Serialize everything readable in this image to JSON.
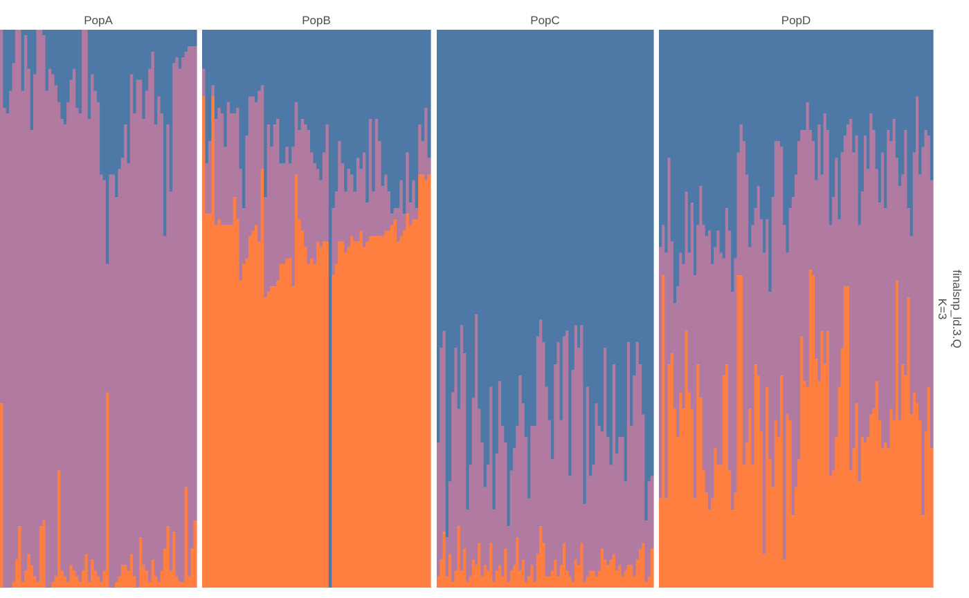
{
  "chart_data": {
    "type": "bar",
    "subtype": "stacked-proportion-admixture",
    "facet_labels": [
      "PopA",
      "PopB",
      "PopC",
      "PopD"
    ],
    "side_label_lines": [
      "finalsnp_ld.3.Q",
      "K=3"
    ],
    "ylim": [
      0,
      1
    ],
    "stack_order_bottom_to_top": [
      "cluster3",
      "cluster2",
      "cluster1"
    ],
    "colors": {
      "cluster1": "#4e79a7",
      "cluster2": "#b07aa1",
      "cluster3": "#ff7f41"
    },
    "grid": false,
    "legend": "none",
    "panels": [
      {
        "name": "PopA",
        "cluster3": [
          0.33,
          0,
          0,
          0,
          0.01,
          0.05,
          0.11,
          0.01,
          0.03,
          0.06,
          0.04,
          0.02,
          0.01,
          0.11,
          0.12,
          0,
          0,
          0.01,
          0.02,
          0.21,
          0.03,
          0.02,
          0.01,
          0.04,
          0.03,
          0.02,
          0.01,
          0.03,
          0.06,
          0.01,
          0.05,
          0.03,
          0.02,
          0.01,
          0.03,
          0.35,
          0,
          0,
          0.01,
          0.02,
          0.04,
          0.04,
          0.03,
          0.06,
          0.02,
          0,
          0.09,
          0.04,
          0.03,
          0.01,
          0.05,
          0.02,
          0.01,
          0.03,
          0.07,
          0.11,
          0.03,
          0.1,
          0.02,
          0.01,
          0.01,
          0.18,
          0.02,
          0.07,
          0.12
        ],
        "cluster2": [
          0.67,
          0.86,
          0.85,
          0.89,
          0.93,
          0.95,
          0.89,
          0.88,
          0.96,
          0.87,
          0.78,
          0.9,
          0.99,
          0.89,
          0.87,
          0.89,
          0.93,
          0.91,
          0.88,
          0.66,
          0.81,
          0.81,
          0.86,
          0.87,
          0.9,
          0.84,
          0.84,
          0.97,
          0.94,
          0.83,
          0.87,
          0.86,
          0.85,
          0.73,
          0.7,
          0.23,
          0.74,
          0.74,
          0.69,
          0.73,
          0.73,
          0.79,
          0.73,
          0.86,
          0.83,
          0.91,
          0.82,
          0.8,
          0.86,
          0.92,
          0.91,
          0.81,
          0.87,
          0.82,
          0.56,
          0.72,
          0.68,
          0.84,
          0.93,
          0.92,
          0.94,
          0.78,
          0.95,
          0.9,
          0.85
        ],
        "cluster1": [
          0,
          0.14,
          0.15,
          0.11,
          0.06,
          0,
          0,
          0.11,
          0.01,
          0.07,
          0.18,
          0.08,
          0,
          0,
          0.01,
          0.11,
          0.07,
          0.08,
          0.1,
          0.13,
          0.16,
          0.17,
          0.13,
          0.09,
          0.07,
          0.14,
          0.15,
          0,
          0,
          0.16,
          0.08,
          0.11,
          0.13,
          0.26,
          0.27,
          0.42,
          0.26,
          0.26,
          0.3,
          0.25,
          0.23,
          0.17,
          0.24,
          0.08,
          0.15,
          0.09,
          0.09,
          0.16,
          0.11,
          0.07,
          0.04,
          0.17,
          0.12,
          0.15,
          0.37,
          0.17,
          0.29,
          0.06,
          0.05,
          0.07,
          0.05,
          0.04,
          0.03,
          0.03,
          0.03
        ]
      },
      {
        "name": "PopB",
        "cluster3": [
          0.88,
          0.67,
          0.67,
          0.88,
          0.65,
          0.66,
          0.65,
          0.65,
          0.65,
          0.65,
          0.7,
          0.66,
          0.55,
          0.58,
          0.59,
          0.63,
          0.64,
          0.65,
          0.62,
          0.75,
          0.52,
          0.53,
          0.54,
          0.54,
          0.55,
          0.58,
          0.58,
          0.59,
          0.59,
          0.54,
          0.74,
          0.66,
          0.64,
          0.61,
          0.58,
          0.59,
          0.58,
          0.62,
          0.61,
          0.62,
          0.62,
          0,
          0.56,
          0.58,
          0.62,
          0.62,
          0.6,
          0.61,
          0.63,
          0.62,
          0.62,
          0.64,
          0.61,
          0.62,
          0.63,
          0.63,
          0.63,
          0.63,
          0.63,
          0.64,
          0.64,
          0.65,
          0.66,
          0.62,
          0.63,
          0.64,
          0.67,
          0.65,
          0.66,
          0.66,
          0.74,
          0.74,
          0.73,
          0.74
        ],
        "cluster2": [
          0.05,
          0.09,
          0.13,
          0.02,
          0.19,
          0.2,
          0.2,
          0.14,
          0.22,
          0.2,
          0.15,
          0.2,
          0.2,
          0.1,
          0.22,
          0.25,
          0.24,
          0.22,
          0.27,
          0.15,
          0.18,
          0.3,
          0.25,
          0.29,
          0.29,
          0.18,
          0.18,
          0.2,
          0.17,
          0.25,
          0.13,
          0.16,
          0.2,
          0.22,
          0.24,
          0.19,
          0.18,
          0.13,
          0.12,
          0.16,
          0.21,
          0,
          0.12,
          0.13,
          0.18,
          0.14,
          0.11,
          0.14,
          0.11,
          0.09,
          0.15,
          0.11,
          0.17,
          0.07,
          0.21,
          0.08,
          0.21,
          0.17,
          0.09,
          0.1,
          0.07,
          0.02,
          0.02,
          0.06,
          0.1,
          0.03,
          0.11,
          0.04,
          0.07,
          0.02,
          0.09,
          0.06,
          0.13,
          0.03
        ],
        "cluster1": [
          0.07,
          0.24,
          0.2,
          0.1,
          0.16,
          0.14,
          0.15,
          0.21,
          0.13,
          0.15,
          0.15,
          0.14,
          0.25,
          0.32,
          0.19,
          0.12,
          0.12,
          0.13,
          0.11,
          0.1,
          0.3,
          0.17,
          0.21,
          0.17,
          0.16,
          0.24,
          0.24,
          0.21,
          0.24,
          0.21,
          0.13,
          0.18,
          0.16,
          0.17,
          0.18,
          0.22,
          0.24,
          0.25,
          0.27,
          0.22,
          0.17,
          1.0,
          0.32,
          0.29,
          0.2,
          0.24,
          0.29,
          0.25,
          0.26,
          0.29,
          0.23,
          0.25,
          0.22,
          0.31,
          0.16,
          0.29,
          0.16,
          0.2,
          0.28,
          0.26,
          0.29,
          0.33,
          0.32,
          0.32,
          0.27,
          0.33,
          0.22,
          0.31,
          0.27,
          0.32,
          0.17,
          0.2,
          0.14,
          0.23
        ]
      },
      {
        "name": "PopC",
        "cluster3": [
          0.02,
          0.05,
          0.1,
          0.02,
          0.06,
          0.01,
          0.03,
          0.11,
          0.03,
          0.07,
          0.01,
          0.02,
          0.05,
          0.04,
          0.08,
          0.02,
          0.04,
          0.03,
          0.08,
          0.01,
          0.03,
          0.04,
          0.02,
          0.07,
          0.01,
          0.03,
          0.04,
          0.09,
          0.03,
          0.05,
          0.01,
          0.02,
          0.04,
          0.01,
          0.06,
          0.11,
          0.08,
          0.02,
          0.02,
          0.03,
          0.05,
          0.02,
          0.04,
          0.08,
          0.03,
          0.02,
          0.01,
          0.05,
          0.04,
          0.08,
          0.01,
          0.02,
          0.03,
          0.03,
          0.02,
          0.03,
          0.07,
          0.05,
          0.04,
          0.05,
          0.06,
          0.03,
          0.04,
          0.02,
          0.03,
          0.04,
          0.04,
          0.02,
          0.05,
          0.07,
          0.08,
          0.01,
          0.02,
          0.07
        ],
        "cluster2": [
          0.24,
          0.38,
          0.36,
          0.07,
          0.13,
          0.34,
          0.4,
          0.21,
          0.44,
          0.35,
          0.13,
          0.2,
          0.29,
          0.45,
          0.24,
          0.24,
          0.14,
          0.19,
          0.28,
          0.13,
          0.21,
          0.33,
          0.27,
          0.19,
          0.1,
          0.18,
          0.21,
          0.2,
          0.35,
          0.28,
          0.26,
          0.14,
          0.25,
          0.28,
          0.39,
          0.37,
          0.36,
          0.34,
          0.28,
          0.2,
          0.35,
          0.42,
          0.26,
          0.37,
          0.43,
          0.18,
          0.38,
          0.42,
          0.39,
          0.39,
          0.14,
          0.34,
          0.17,
          0.19,
          0.31,
          0.26,
          0.21,
          0.38,
          0.23,
          0.17,
          0.34,
          0.21,
          0.23,
          0.25,
          0.16,
          0.4,
          0.25,
          0.36,
          0.39,
          0.33,
          0.23,
          0.11,
          0.17,
          0.13
        ],
        "cluster1": [
          0.74,
          0.57,
          0.54,
          0.91,
          0.81,
          0.65,
          0.57,
          0.68,
          0.53,
          0.58,
          0.86,
          0.78,
          0.66,
          0.51,
          0.68,
          0.74,
          0.82,
          0.78,
          0.64,
          0.86,
          0.76,
          0.63,
          0.71,
          0.74,
          0.89,
          0.79,
          0.75,
          0.71,
          0.62,
          0.67,
          0.73,
          0.84,
          0.71,
          0.71,
          0.55,
          0.52,
          0.56,
          0.64,
          0.7,
          0.77,
          0.6,
          0.56,
          0.7,
          0.55,
          0.54,
          0.8,
          0.61,
          0.53,
          0.57,
          0.53,
          0.85,
          0.64,
          0.8,
          0.78,
          0.67,
          0.71,
          0.72,
          0.57,
          0.73,
          0.78,
          0.6,
          0.76,
          0.73,
          0.73,
          0.81,
          0.56,
          0.71,
          0.62,
          0.56,
          0.6,
          0.69,
          0.88,
          0.81,
          0.8
        ]
      },
      {
        "name": "PopD",
        "cluster3": [
          0.16,
          0.56,
          0.16,
          0.4,
          0.42,
          0.32,
          0.27,
          0.35,
          0.32,
          0.46,
          0.35,
          0.32,
          0.16,
          0.4,
          0.34,
          0.21,
          0.17,
          0.14,
          0.16,
          0.25,
          0.22,
          0.22,
          0.38,
          0.4,
          0.21,
          0.14,
          0.17,
          0.56,
          0.56,
          0.22,
          0.26,
          0.32,
          0.22,
          0.4,
          0.38,
          0.28,
          0.06,
          0.36,
          0.23,
          0.18,
          0.3,
          0.27,
          0.38,
          0.05,
          0.31,
          0.3,
          0.13,
          0.18,
          0.23,
          0.45,
          0.37,
          0.36,
          0.57,
          0.56,
          0.41,
          0.37,
          0.46,
          0.4,
          0.46,
          0.2,
          0.21,
          0.27,
          0.36,
          0.43,
          0.54,
          0.54,
          0.21,
          0.25,
          0.33,
          0.19,
          0.27,
          0.26,
          0.27,
          0.31,
          0.32,
          0.37,
          0.3,
          0.25,
          0.26,
          0.25,
          0.32,
          0.3,
          0.55,
          0.3,
          0.4,
          0.38,
          0.52,
          0.31,
          0.35,
          0.33,
          0.3,
          0.13,
          0.28,
          0.36,
          0.25
        ],
        "cluster2": [
          0.45,
          0.09,
          0.44,
          0.37,
          0.2,
          0.19,
          0.27,
          0.25,
          0.26,
          0.25,
          0.25,
          0.37,
          0.4,
          0.25,
          0.38,
          0.44,
          0.46,
          0.5,
          0.42,
          0.36,
          0.42,
          0.38,
          0.21,
          0.28,
          0.43,
          0.39,
          0.42,
          0.22,
          0.27,
          0.58,
          0.48,
          0.29,
          0.43,
          0.28,
          0.34,
          0.38,
          0.54,
          0.3,
          0.3,
          0.52,
          0.5,
          0.53,
          0.41,
          0.6,
          0.29,
          0.38,
          0.57,
          0.56,
          0.57,
          0.37,
          0.45,
          0.51,
          0.25,
          0.24,
          0.32,
          0.46,
          0.28,
          0.45,
          0.36,
          0.45,
          0.49,
          0.5,
          0.3,
          0.35,
          0.27,
          0.29,
          0.63,
          0.53,
          0.48,
          0.46,
          0.44,
          0.55,
          0.48,
          0.54,
          0.5,
          0.38,
          0.39,
          0.53,
          0.42,
          0.57,
          0.48,
          0.54,
          0.22,
          0.42,
          0.34,
          0.44,
          0.16,
          0.32,
          0.43,
          0.55,
          0.44,
          0.66,
          0.54,
          0.45,
          0.48
        ],
        "cluster1": [
          0.39,
          0.35,
          0.4,
          0.23,
          0.38,
          0.49,
          0.46,
          0.4,
          0.42,
          0.29,
          0.4,
          0.31,
          0.44,
          0.35,
          0.28,
          0.35,
          0.37,
          0.36,
          0.42,
          0.39,
          0.36,
          0.4,
          0.41,
          0.32,
          0.36,
          0.47,
          0.41,
          0.22,
          0.17,
          0.2,
          0.26,
          0.39,
          0.35,
          0.32,
          0.28,
          0.34,
          0.4,
          0.34,
          0.47,
          0.3,
          0.2,
          0.2,
          0.21,
          0.35,
          0.4,
          0.32,
          0.3,
          0.26,
          0.2,
          0.18,
          0.18,
          0.13,
          0.18,
          0.2,
          0.27,
          0.17,
          0.26,
          0.15,
          0.18,
          0.35,
          0.3,
          0.23,
          0.34,
          0.22,
          0.19,
          0.17,
          0.16,
          0.22,
          0.19,
          0.35,
          0.29,
          0.19,
          0.25,
          0.15,
          0.18,
          0.25,
          0.31,
          0.22,
          0.32,
          0.18,
          0.2,
          0.16,
          0.23,
          0.28,
          0.26,
          0.18,
          0.32,
          0.37,
          0.22,
          0.12,
          0.26,
          0.21,
          0.18,
          0.19,
          0.27
        ]
      }
    ]
  }
}
